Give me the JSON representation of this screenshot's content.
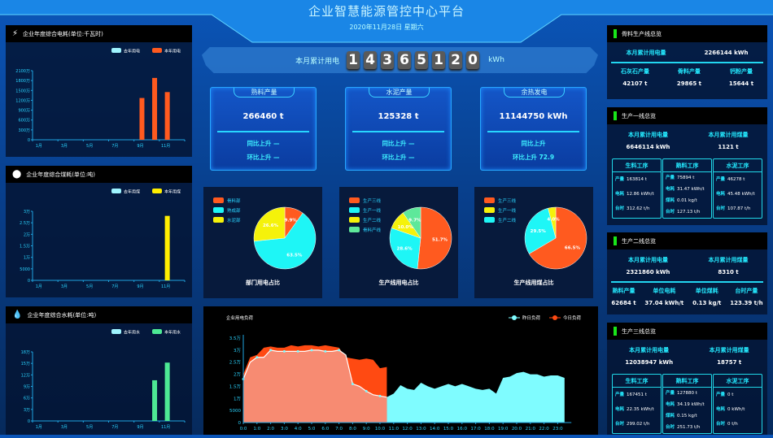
{
  "header": {
    "title": "企业智慧能源管控中心平台",
    "date": "2020年11月28日 星期六"
  },
  "counter": {
    "label": "本月累计用电",
    "digits": [
      "1",
      "4",
      "3",
      "6",
      "5",
      "1",
      "2",
      "0"
    ],
    "unit": "kWh"
  },
  "cards": [
    {
      "title": "熟料产量",
      "value": "266460 t",
      "yoy": "同比上升 —",
      "mom": "环比上升 —"
    },
    {
      "title": "水泥产量",
      "value": "125328 t",
      "yoy": "同比上升 —",
      "mom": "环比上升 —"
    },
    {
      "title": "余热发电",
      "value": "11144750 kWh",
      "yoy": "同比上升",
      "mom": "环比上升 72.9"
    }
  ],
  "left_panels": [
    {
      "title": "企业年度综合电耗(单位:千瓦时)",
      "icon": "lightning-icon",
      "legend": [
        "去年用电",
        "本年用电"
      ],
      "colors": [
        "#9ff4ff",
        "#ff5a1f"
      ],
      "chart_data": {
        "type": "bar",
        "x_tick_labels": [
          "1月",
          "3月",
          "5月",
          "7月",
          "9月",
          "11月"
        ],
        "months": 12,
        "ytick_labels": [
          "0",
          "300万",
          "600万",
          "900万",
          "1200万",
          "1500万",
          "1800万",
          "2100万"
        ],
        "ylim": [
          0,
          21000000
        ],
        "series": [
          {
            "name": "去年用电",
            "values": [
              0,
              0,
              0,
              0,
              0,
              0,
              0,
              0,
              0,
              0,
              0,
              0
            ]
          },
          {
            "name": "本年用电",
            "values": [
              0,
              0,
              0,
              0,
              0,
              0,
              0,
              0,
              12700000,
              18800000,
              14500000,
              0
            ]
          }
        ]
      }
    },
    {
      "title": "企业年度综合煤耗(单位:吨)",
      "icon": "coal-icon",
      "legend": [
        "去年用煤",
        "本年用煤"
      ],
      "colors": [
        "#9ff4ff",
        "#ffee00"
      ],
      "chart_data": {
        "type": "bar",
        "x_tick_labels": [
          "1月",
          "3月",
          "5月",
          "7月",
          "9月",
          "11月"
        ],
        "months": 12,
        "ytick_labels": [
          "0",
          "5000",
          "1万",
          "1.5万",
          "2万",
          "2.5万",
          "3万"
        ],
        "ylim": [
          0,
          30000
        ],
        "series": [
          {
            "name": "去年用煤",
            "values": [
              0,
              0,
              0,
              0,
              0,
              0,
              0,
              0,
              0,
              0,
              0,
              0
            ]
          },
          {
            "name": "本年用煤",
            "values": [
              0,
              0,
              0,
              0,
              0,
              0,
              0,
              0,
              0,
              0,
              28000,
              0
            ]
          }
        ]
      }
    },
    {
      "title": "企业年度综合水耗(单位:吨)",
      "icon": "water-drop-icon",
      "legend": [
        "去年用水",
        "本年用水"
      ],
      "colors": [
        "#9ff4ff",
        "#4de894"
      ],
      "chart_data": {
        "type": "bar",
        "x_tick_labels": [
          "1月",
          "3月",
          "5月",
          "7月",
          "9月",
          "11月"
        ],
        "months": 12,
        "ytick_labels": [
          "0",
          "3万",
          "6万",
          "9万",
          "12万",
          "15万",
          "18万"
        ],
        "ylim": [
          0,
          180000
        ],
        "series": [
          {
            "name": "去年用水",
            "values": [
              0,
              0,
              0,
              0,
              0,
              0,
              0,
              0,
              0,
              0,
              0,
              0
            ]
          },
          {
            "name": "本年用水",
            "values": [
              0,
              0,
              0,
              0,
              0,
              0,
              0,
              0,
              0,
              106000,
              152000,
              0
            ]
          }
        ]
      }
    }
  ],
  "pies": [
    {
      "title": "部门用电占比",
      "chart_data": {
        "type": "pie",
        "slices": [
          {
            "name": "骨料部",
            "value": 9.9,
            "label": "9.9%",
            "color": "#ff5a1f"
          },
          {
            "name": "熟成部",
            "value": 63.5,
            "label": "63.5%",
            "color": "#1ef6f6"
          },
          {
            "name": "水泥部",
            "value": 26.6,
            "label": "26.6%",
            "color": "#f5f20a"
          }
        ]
      }
    },
    {
      "title": "生产线用电占比",
      "chart_data": {
        "type": "pie",
        "slices": [
          {
            "name": "生产三线",
            "value": 51.7,
            "label": "51.7%",
            "color": "#ff5a1f"
          },
          {
            "name": "生产一线",
            "value": 28.6,
            "label": "28.6%",
            "color": "#1ef6f6"
          },
          {
            "name": "生产二线",
            "value": 10.0,
            "label": "10.0%",
            "color": "#f5f20a"
          },
          {
            "name": "骨料产线",
            "value": 9.7,
            "label": "9.7%",
            "color": "#5ee89a"
          }
        ]
      }
    },
    {
      "title": "生产线用煤占比",
      "chart_data": {
        "type": "pie",
        "slices": [
          {
            "name": "生产三线",
            "value": 66.5,
            "label": "66.5%",
            "color": "#ff5a1f"
          },
          {
            "name": "生产二线",
            "value": 29.5,
            "label": "29.5%",
            "color": "#1ef6f6"
          },
          {
            "name": "生产一线",
            "value": 4.0,
            "label": "4.0%",
            "color": "#f5f20a"
          }
        ],
        "legend_order": [
          "生产三线",
          "生产一线",
          "生产二线"
        ]
      }
    }
  ],
  "load_chart": {
    "title": "企业用电负荷",
    "chart_data": {
      "type": "area",
      "x_tick_labels": [
        "0:0",
        "1:0",
        "2:0",
        "3:0",
        "4:0",
        "5:0",
        "6:0",
        "7:0",
        "8:0",
        "9:0",
        "10:0",
        "11:0",
        "12:0",
        "13:0",
        "14:0",
        "15:0",
        "16:0",
        "17:0",
        "18:0",
        "19:0",
        "20:0",
        "21:0",
        "22:0",
        "23:0"
      ],
      "ytick_labels": [
        "0",
        "5000",
        "1万",
        "1.5万",
        "2万",
        "2.5万",
        "3万",
        "3.5万"
      ],
      "ylim": [
        0,
        35000
      ],
      "x_step_hours": 0.5,
      "series": [
        {
          "name": "昨日负荷",
          "color": "#7ffcff",
          "values": [
            18000,
            25000,
            27000,
            27000,
            30000,
            29500,
            29500,
            29500,
            29500,
            29500,
            30000,
            30000,
            29500,
            29500,
            30000,
            28000,
            16000,
            15000,
            13000,
            11500,
            11000,
            10500,
            12000,
            15500,
            14000,
            13500,
            16500,
            15000,
            14000,
            15000,
            16000,
            15000,
            16000,
            15000,
            14000,
            13500,
            14000,
            12000,
            18500,
            19000,
            20500,
            21000,
            20000,
            20000,
            19000,
            19500,
            19500,
            18500
          ]
        },
        {
          "name": "今日负荷",
          "color": "#ff4a12",
          "values": [
            20000,
            27000,
            28000,
            31000,
            31500,
            31000,
            31000,
            32000,
            31500,
            32000,
            32000,
            31500,
            32000,
            31500,
            31000,
            27000,
            26500,
            26000,
            26500,
            26000,
            22500,
            23000
          ]
        }
      ]
    }
  },
  "right_panels": {
    "aggregate": {
      "title": "骨料生产线总览",
      "power_label": "本月累计用电量",
      "power_value": "2266144 kWh",
      "items": [
        {
          "label": "石灰石产量",
          "value": "42107 t"
        },
        {
          "label": "骨料产量",
          "value": "29865 t"
        },
        {
          "label": "钙粉产量",
          "value": "15644 t"
        }
      ]
    },
    "line1": {
      "title": "生产一线总览",
      "top": [
        {
          "label": "本月累计用电量",
          "value": "6646114 kWh"
        },
        {
          "label": "本月累计用煤量",
          "value": "1121 t"
        }
      ],
      "cols": [
        {
          "title": "生料工序",
          "rows": [
            {
              "k": "产量",
              "v": "163814 t"
            },
            {
              "k": "电耗",
              "v": "12.86 kWh/t"
            },
            {
              "k": "台时",
              "v": "312.62 t/h"
            }
          ]
        },
        {
          "title": "熟料工序",
          "rows": [
            {
              "k": "产量",
              "v": "75894 t"
            },
            {
              "k": "电耗",
              "v": "31.47 kWh/t"
            },
            {
              "k": "煤耗",
              "v": "0.01 kg/t"
            },
            {
              "k": "台时",
              "v": "127.13 t/h"
            }
          ]
        },
        {
          "title": "水泥工序",
          "rows": [
            {
              "k": "产量",
              "v": "46278 t"
            },
            {
              "k": "电耗",
              "v": "45.48 kWh/t"
            },
            {
              "k": "台时",
              "v": "107.87 t/h"
            }
          ]
        }
      ]
    },
    "line2": {
      "title": "生产二线总览",
      "top": [
        {
          "label": "本月累计用电量",
          "value": "2321860 kWh"
        },
        {
          "label": "本月累计用煤量",
          "value": "8310 t"
        }
      ],
      "items": [
        {
          "label": "熟料产量",
          "value": "62684 t"
        },
        {
          "label": "单位电耗",
          "value": "37.04 kWh/t"
        },
        {
          "label": "单位煤耗",
          "value": "0.13 kg/t"
        },
        {
          "label": "台时产量",
          "value": "123.39 t/h"
        }
      ]
    },
    "line3": {
      "title": "生产三线总览",
      "top": [
        {
          "label": "本月累计用电量",
          "value": "12038947 kWh"
        },
        {
          "label": "本月累计用煤量",
          "value": "18757 t"
        }
      ],
      "cols": [
        {
          "title": "生料工序",
          "rows": [
            {
              "k": "产量",
              "v": "167451 t"
            },
            {
              "k": "电耗",
              "v": "22.35 kWh/t"
            },
            {
              "k": "台时",
              "v": "299.02 t/h"
            }
          ]
        },
        {
          "title": "熟料工序",
          "rows": [
            {
              "k": "产量",
              "v": "127880 t"
            },
            {
              "k": "电耗",
              "v": "34.19 kWh/t"
            },
            {
              "k": "煤耗",
              "v": "0.15 kg/t"
            },
            {
              "k": "台时",
              "v": "251.73 t/h"
            }
          ]
        },
        {
          "title": "水泥工序",
          "rows": [
            {
              "k": "产量",
              "v": "0 t"
            },
            {
              "k": "电耗",
              "v": "0 kWh/t"
            },
            {
              "k": "台时",
              "v": "0 t/h"
            }
          ]
        }
      ]
    }
  }
}
